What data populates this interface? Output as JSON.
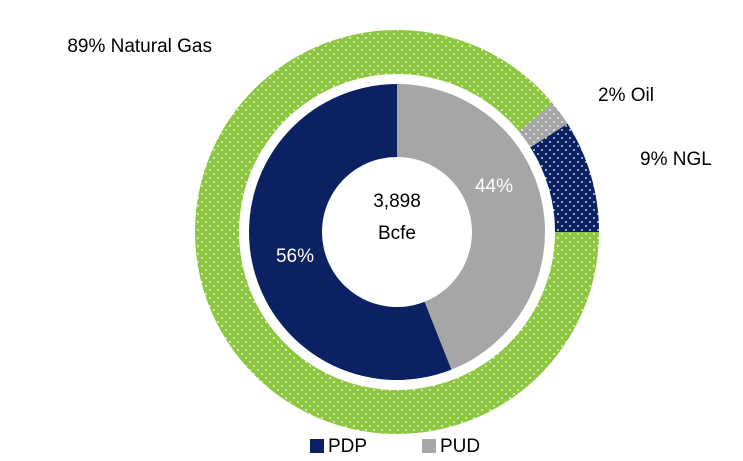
{
  "chart_data": [
    {
      "type": "donut",
      "categories": [
        "PDP",
        "PUD"
      ],
      "values": [
        56,
        44
      ],
      "value_labels": [
        "56%",
        "44%"
      ],
      "colors": [
        "#0b2161",
        "#a6a6a6"
      ],
      "legend": "bottom",
      "center_label": [
        "3,898",
        "Bcfe"
      ]
    },
    {
      "type": "donut",
      "values": [
        89,
        2,
        9
      ],
      "value_labels": [
        "89% Natural Gas",
        "2% Oil",
        "9% NGL"
      ],
      "colors": [
        "#8dc63f",
        "#a6a6a6",
        "#0b2161"
      ],
      "pattern": "dots"
    }
  ]
}
